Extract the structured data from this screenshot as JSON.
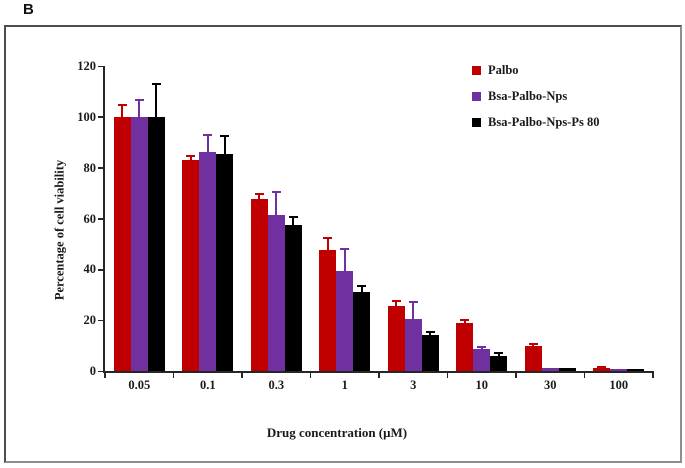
{
  "figure": {
    "panel_label": "B"
  },
  "chart_data": {
    "type": "bar",
    "title": "",
    "xlabel": "Drug concentration (μM)",
    "ylabel": "Percentage of cell viability",
    "categories": [
      "0.05",
      "0.1",
      "0.3",
      "1",
      "3",
      "10",
      "30",
      "100"
    ],
    "series": [
      {
        "name": "Palbo",
        "color": "#c00000",
        "values": [
          100,
          83,
          67.5,
          47.5,
          25.5,
          19,
          9.7,
          1
        ],
        "errors_up": [
          4.5,
          1.5,
          2,
          5,
          2,
          1,
          0.8,
          0.5
        ]
      },
      {
        "name": "Bsa-Palbo-Nps",
        "color": "#7030a0",
        "values": [
          100,
          86,
          61.5,
          39.5,
          20.5,
          8.5,
          1,
          0.8
        ],
        "errors_up": [
          6.5,
          7,
          9,
          8.5,
          6.5,
          1,
          0,
          0
        ]
      },
      {
        "name": "Bsa-Palbo-Nps-Ps 80",
        "color": "#000000",
        "values": [
          100,
          85.5,
          57.5,
          31,
          14,
          6,
          1,
          0.8
        ],
        "errors_up": [
          13,
          7,
          3,
          2.3,
          1.5,
          1.2,
          0,
          0
        ]
      }
    ],
    "ylim": [
      0,
      120
    ],
    "yticks": [
      0,
      20,
      40,
      60,
      80,
      100,
      120
    ],
    "grid": false,
    "error_bars": "upper-only, colored per series",
    "legend_position": "upper right inside plot"
  }
}
